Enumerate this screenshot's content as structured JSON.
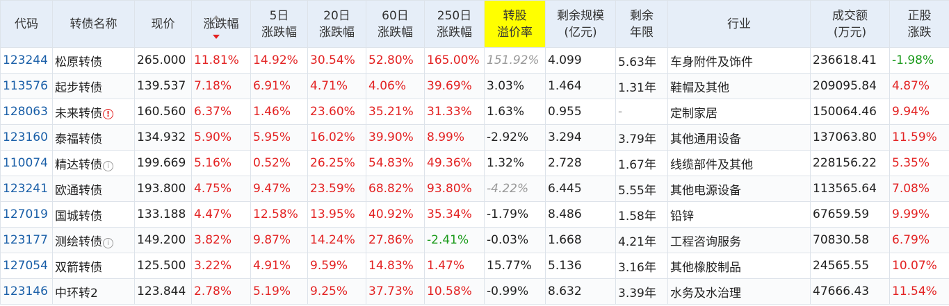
{
  "headers": {
    "code": "代码",
    "name": "转债名称",
    "price": "现价",
    "change": "涨跌幅",
    "chg5_l1": "5日",
    "chg5_l2": "涨跌幅",
    "chg20_l1": "20日",
    "chg20_l2": "涨跌幅",
    "chg60_l1": "60日",
    "chg60_l2": "涨跌幅",
    "chg250_l1": "250日",
    "chg250_l2": "涨跌幅",
    "premium_l1": "转股",
    "premium_l2": "溢价率",
    "scale_l1": "剩余规模",
    "scale_l2": "(亿元)",
    "years_l1": "剩余",
    "years_l2": "年限",
    "industry": "行业",
    "turnover_l1": "成交额",
    "turnover_l2": "(万元)",
    "stock_l1": "正股",
    "stock_l2": "涨跌"
  },
  "rows": [
    {
      "code": "123244",
      "name": "松原转债",
      "price": "265.000",
      "change": "11.81%",
      "chg5": "14.92%",
      "chg20": "30.54%",
      "chg60": "52.80%",
      "chg250": "165.00%",
      "premium": "151.92%",
      "scale": "4.099",
      "years": "5.63年",
      "industry": "车身附件及饰件",
      "turnover": "236618.41",
      "stock": "-1.98%"
    },
    {
      "code": "113576",
      "name": "起步转债",
      "price": "139.537",
      "change": "7.18%",
      "chg5": "6.91%",
      "chg20": "4.71%",
      "chg60": "4.06%",
      "chg250": "39.69%",
      "premium": "3.03%",
      "scale": "1.464",
      "years": "1.31年",
      "industry": "鞋帽及其他",
      "turnover": "209095.84",
      "stock": "4.87%"
    },
    {
      "code": "128063",
      "name": "未来转债",
      "price": "160.560",
      "change": "6.37%",
      "chg5": "1.46%",
      "chg20": "23.60%",
      "chg60": "35.21%",
      "chg250": "31.33%",
      "premium": "1.63%",
      "scale": "0.955",
      "years": "-",
      "industry": "定制家居",
      "turnover": "150064.46",
      "stock": "9.94%"
    },
    {
      "code": "123160",
      "name": "泰福转债",
      "price": "134.932",
      "change": "5.90%",
      "chg5": "5.95%",
      "chg20": "16.02%",
      "chg60": "39.90%",
      "chg250": "8.99%",
      "premium": "-2.92%",
      "scale": "3.294",
      "years": "3.79年",
      "industry": "其他通用设备",
      "turnover": "137063.80",
      "stock": "11.59%"
    },
    {
      "code": "110074",
      "name": "精达转债",
      "price": "199.669",
      "change": "5.16%",
      "chg5": "0.52%",
      "chg20": "26.25%",
      "chg60": "54.83%",
      "chg250": "49.36%",
      "premium": "1.32%",
      "scale": "2.728",
      "years": "1.67年",
      "industry": "线缆部件及其他",
      "turnover": "228156.22",
      "stock": "5.35%"
    },
    {
      "code": "123241",
      "name": "欧通转债",
      "price": "193.800",
      "change": "4.75%",
      "chg5": "9.47%",
      "chg20": "23.59%",
      "chg60": "68.82%",
      "chg250": "93.80%",
      "premium": "-4.22%",
      "scale": "6.445",
      "years": "5.55年",
      "industry": "其他电源设备",
      "turnover": "113565.64",
      "stock": "7.08%"
    },
    {
      "code": "127019",
      "name": "国城转债",
      "price": "133.188",
      "change": "4.47%",
      "chg5": "12.58%",
      "chg20": "13.95%",
      "chg60": "40.92%",
      "chg250": "35.34%",
      "premium": "-1.79%",
      "scale": "8.486",
      "years": "1.58年",
      "industry": "铅锌",
      "turnover": "67659.59",
      "stock": "9.99%"
    },
    {
      "code": "123177",
      "name": "测绘转债",
      "price": "149.200",
      "change": "3.82%",
      "chg5": "9.87%",
      "chg20": "14.24%",
      "chg60": "27.86%",
      "chg250": "-2.41%",
      "premium": "-0.03%",
      "scale": "1.668",
      "years": "4.21年",
      "industry": "工程咨询服务",
      "turnover": "70830.58",
      "stock": "6.79%"
    },
    {
      "code": "127054",
      "name": "双箭转债",
      "price": "125.500",
      "change": "3.22%",
      "chg5": "4.91%",
      "chg20": "9.59%",
      "chg60": "14.83%",
      "chg250": "1.47%",
      "premium": "15.77%",
      "scale": "5.136",
      "years": "3.16年",
      "industry": "其他橡胶制品",
      "turnover": "24565.55",
      "stock": "10.07%"
    },
    {
      "code": "123146",
      "name": "中环转2",
      "price": "123.844",
      "change": "2.78%",
      "chg5": "5.19%",
      "chg20": "9.25%",
      "chg60": "37.73%",
      "chg250": "10.58%",
      "premium": "-0.99%",
      "scale": "8.632",
      "years": "3.39年",
      "industry": "水务及水治理",
      "turnover": "47666.43",
      "stock": "11.54%"
    }
  ]
}
